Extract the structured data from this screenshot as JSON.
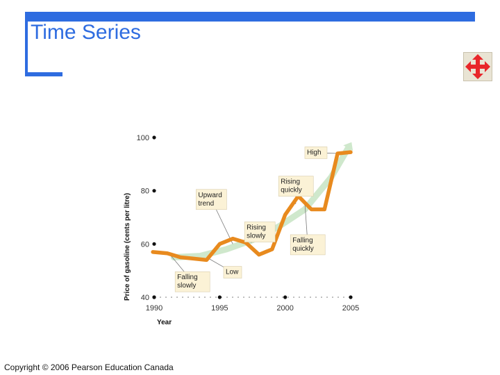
{
  "slide": {
    "title": "Time Series",
    "copyright": "Copyright © 2006 Pearson Education Canada",
    "accent_color": "#2e6ce0"
  },
  "nav_button": {
    "icon": "four-way-arrows-icon",
    "color": "#e8262a"
  },
  "chart_data": {
    "type": "line",
    "title": "",
    "xlabel": "Year",
    "ylabel": "Price of gasoline (cents per litre)",
    "xlim": [
      1990,
      2005
    ],
    "ylim": [
      40,
      100
    ],
    "x_ticks": [
      1990,
      1995,
      2000,
      2005
    ],
    "y_ticks": [
      40,
      60,
      80,
      100
    ],
    "series": [
      {
        "color": "#e88a1e",
        "x": [
          1989.9,
          1991,
          1992,
          1993,
          1994,
          1995,
          1996,
          1997,
          1998,
          1999,
          2000,
          2001,
          2002,
          2003,
          2004,
          2005
        ],
        "y": [
          57,
          56.5,
          55,
          54.5,
          54,
          60,
          62,
          60.5,
          56,
          58,
          71,
          78,
          73,
          73,
          94,
          94.5
        ]
      }
    ],
    "trend": {
      "color": "#cfe8cc",
      "x": [
        1991.5,
        1993.5,
        1995.5,
        1997.5,
        1999.5,
        2001.5,
        2003.5,
        2004.8
      ],
      "y": [
        55,
        55.5,
        58,
        61.5,
        66.5,
        73,
        85,
        96
      ]
    },
    "annotations": [
      {
        "lines": [
          "Upward",
          "trend"
        ],
        "x": 1993.2,
        "y": 80.5,
        "target": [
          1996.0,
          60.0
        ]
      },
      {
        "lines": [
          "Rising",
          "quickly"
        ],
        "x": 1999.5,
        "y": 85.5,
        "target": [
          2000.8,
          75.0
        ]
      },
      {
        "lines": [
          "High"
        ],
        "x": 2001.5,
        "y": 96.5,
        "target": [
          2004.1,
          94.0
        ]
      },
      {
        "lines": [
          "Rising",
          "slowly"
        ],
        "x": 1996.9,
        "y": 68.3,
        "target": [
          1997.4,
          60.5
        ]
      },
      {
        "lines": [
          "Falling",
          "quickly"
        ],
        "x": 2000.4,
        "y": 63.5,
        "target": [
          2001.5,
          75.5
        ]
      },
      {
        "lines": [
          "Low"
        ],
        "x": 1995.3,
        "y": 51.6,
        "target": [
          1994.0,
          55.0
        ]
      },
      {
        "lines": [
          "Falling",
          "slowly"
        ],
        "x": 1991.6,
        "y": 49.6,
        "target": [
          1991.3,
          55.5
        ]
      }
    ]
  }
}
